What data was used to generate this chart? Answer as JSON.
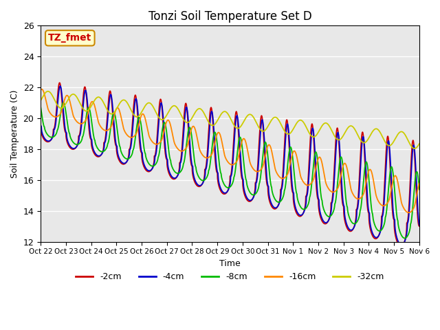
{
  "title": "Tonzi Soil Temperature Set D",
  "xlabel": "Time",
  "ylabel": "Soil Temperature (C)",
  "ylim": [
    12,
    26
  ],
  "xlim": [
    0,
    360
  ],
  "background_color": "#ffffff",
  "plot_bg_color": "#e8e8e8",
  "series_colors": [
    "#cc0000",
    "#0000cc",
    "#00bb00",
    "#ff8800",
    "#cccc00"
  ],
  "series_labels": [
    "-2cm",
    "-4cm",
    "-8cm",
    "-16cm",
    "-32cm"
  ],
  "annotation_text": "TZ_fmet",
  "annotation_bg": "#ffffcc",
  "annotation_border": "#cc8800",
  "annotation_text_color": "#cc0000",
  "tick_labels": [
    "Oct 22",
    "Oct 23",
    "Oct 24",
    "Oct 25",
    "Oct 26",
    "Oct 27",
    "Oct 28",
    "Oct 29",
    "Oct 30",
    "Oct 31",
    "Nov 1",
    "Nov 2",
    "Nov 3",
    "Nov 4",
    "Nov 5",
    "Nov 6"
  ],
  "tick_positions": [
    0,
    24,
    48,
    72,
    96,
    120,
    144,
    168,
    192,
    216,
    240,
    264,
    288,
    312,
    336,
    360
  ],
  "yticks": [
    12,
    14,
    16,
    18,
    20,
    22,
    24,
    26
  ]
}
